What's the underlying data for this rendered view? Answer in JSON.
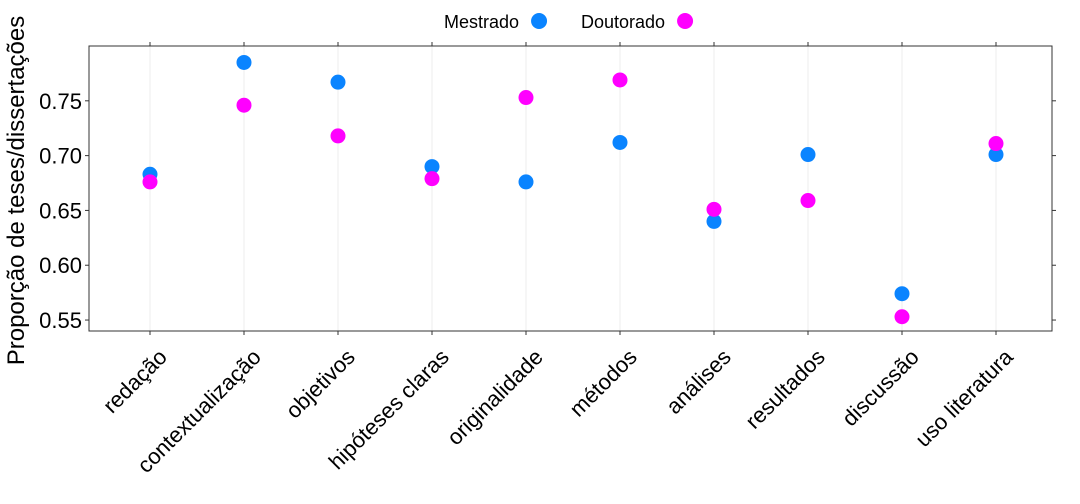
{
  "chart_data": {
    "type": "scatter",
    "ylabel": "Proporção de teses/dissertações",
    "categories": [
      "redação",
      "contextualização",
      "objetivos",
      "hipóteses claras",
      "originalidade",
      "métodos",
      "análises",
      "resultados",
      "discussão",
      "uso literatura"
    ],
    "y_ticks": [
      "0.55",
      "0.60",
      "0.65",
      "0.70",
      "0.75"
    ],
    "ylim": [
      0.54,
      0.8
    ],
    "grid": "vertical",
    "legend_position": "top",
    "series": [
      {
        "name": "Mestrado",
        "color": "#0a84ff",
        "values": [
          0.683,
          0.785,
          0.767,
          0.69,
          0.676,
          0.712,
          0.64,
          0.701,
          0.574,
          0.701
        ]
      },
      {
        "name": "Doutorado",
        "color": "#ff00ff",
        "values": [
          0.676,
          0.746,
          0.718,
          0.679,
          0.753,
          0.769,
          0.651,
          0.659,
          0.553,
          0.711
        ]
      }
    ]
  }
}
